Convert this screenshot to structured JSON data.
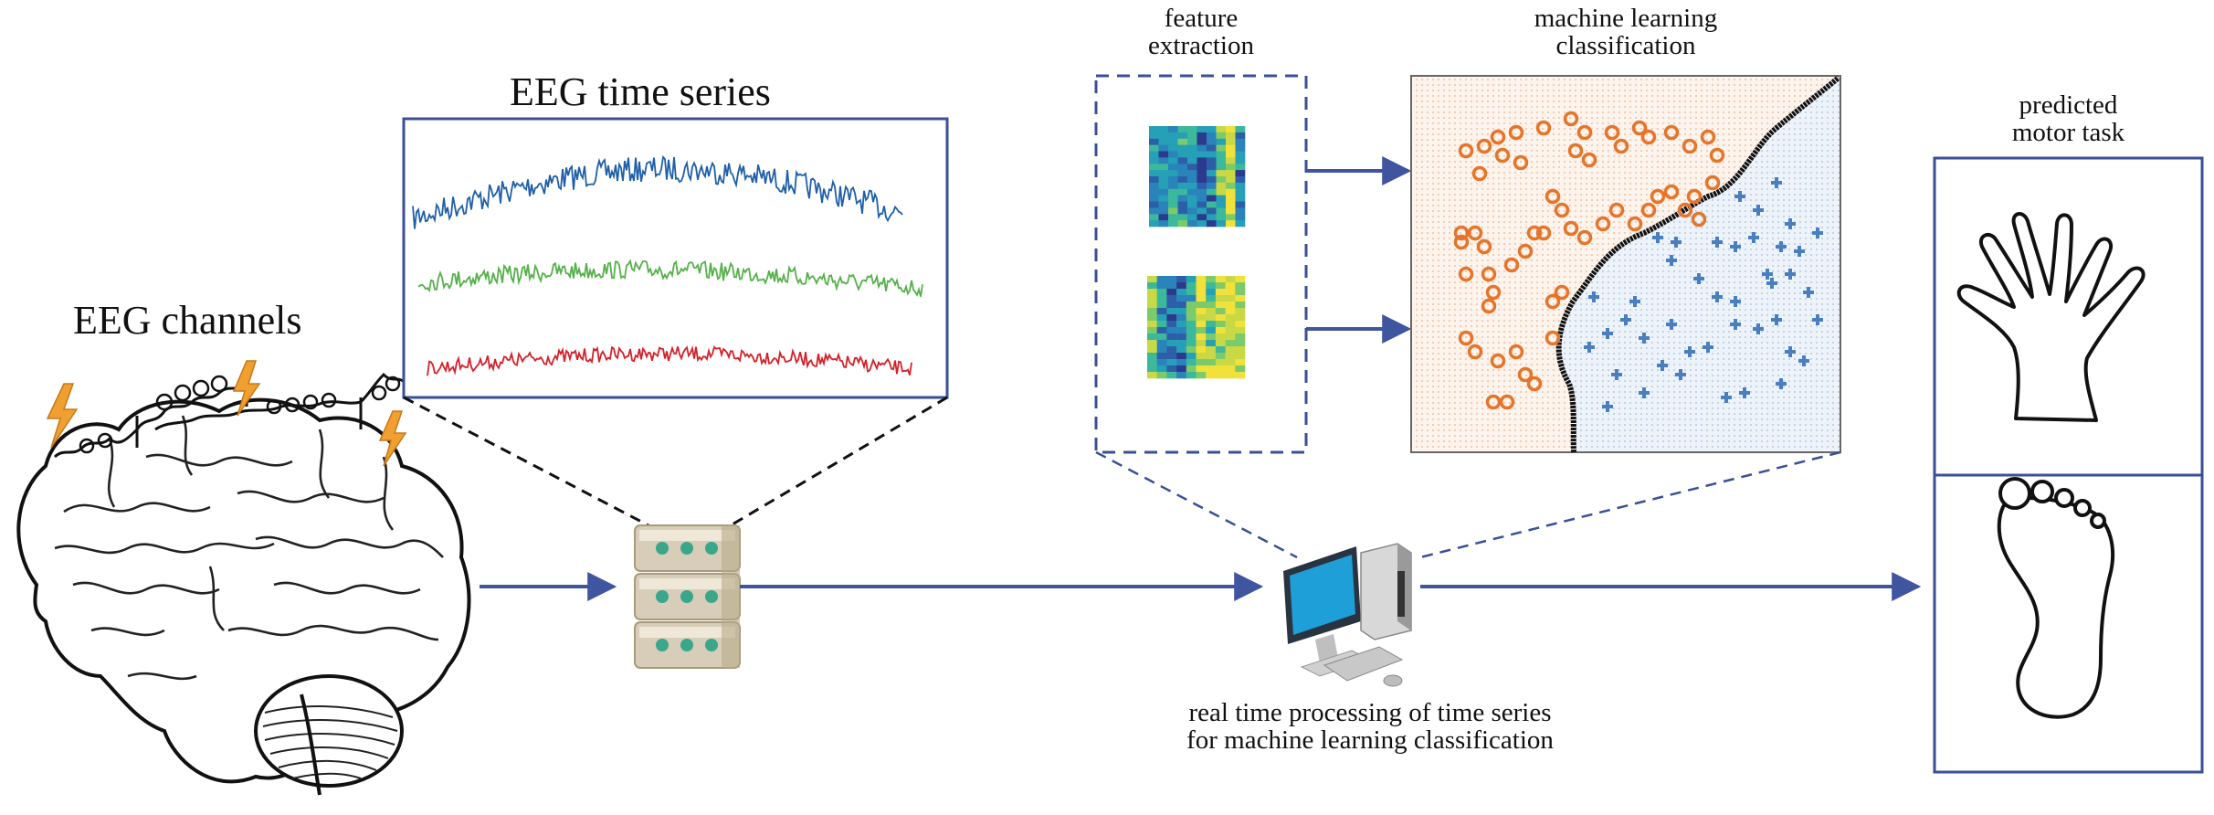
{
  "labels": {
    "eeg_channels": "EEG channels",
    "eeg_time_series": "EEG time series",
    "feature_extraction_line1": "feature",
    "feature_extraction_line2": "extraction",
    "ml_classification_line1": "machine learning",
    "ml_classification_line2": "classification",
    "predicted_line1": "predicted",
    "predicted_line2": "motor task",
    "processing_line1": "real time processing of time series",
    "processing_line2": "for machine learning classification"
  },
  "icons": {
    "brain": "brain-icon",
    "electrode_lightning": "lightning-icon",
    "server": "server-icon",
    "computer": "computer-icon",
    "hand": "hand-icon",
    "foot": "foot-icon"
  },
  "colors": {
    "frame_blue": "#3a4f96",
    "arrow_blue": "#3f55a0",
    "signal_blue": "#1f5fa8",
    "signal_green": "#55b04a",
    "signal_red": "#d4212a",
    "class_orange": "#e5752a",
    "class_blue": "#4a7fbf",
    "lightning": "#f0a030"
  },
  "signals": [
    {
      "name": "channel-blue",
      "color": "#1f5fa8"
    },
    {
      "name": "channel-green",
      "color": "#55b04a"
    },
    {
      "name": "channel-red",
      "color": "#d4212a"
    }
  ]
}
